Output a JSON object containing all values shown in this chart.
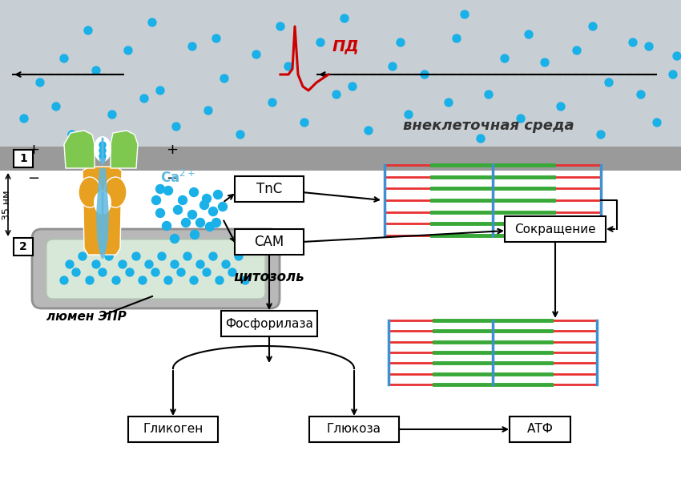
{
  "bg_top": "#c8cfd4",
  "bg_bottom": "#ffffff",
  "membrane_color": "#9a9a9a",
  "cyan_dot_color": "#1ab0e8",
  "green_protein_color": "#7ec850",
  "orange_protein_color": "#e8a020",
  "blue_channel_color": "#60b8e0",
  "red_ap_color": "#cc0000",
  "green_sarcomere_color": "#38a838",
  "red_sarcomere_color": "#e83030",
  "blue_zline_color": "#4090d0",
  "label_extracell": "внеклеточная среда",
  "label_PD": "пд",
  "label_35nm": "35 нм",
  "label_Ca2": "Ca²⁺",
  "label_TnC": "TnC",
  "label_CAM": "САМ",
  "label_cytosol": "цитозоль",
  "label_lumen": "люмен ЭПР",
  "label_Fosf": "Фосфорилаза",
  "label_Glik": "Гликоген",
  "label_Gluk": "Глюкоза",
  "label_ATF": "АТФ",
  "label_Sokr": "Сокращение"
}
